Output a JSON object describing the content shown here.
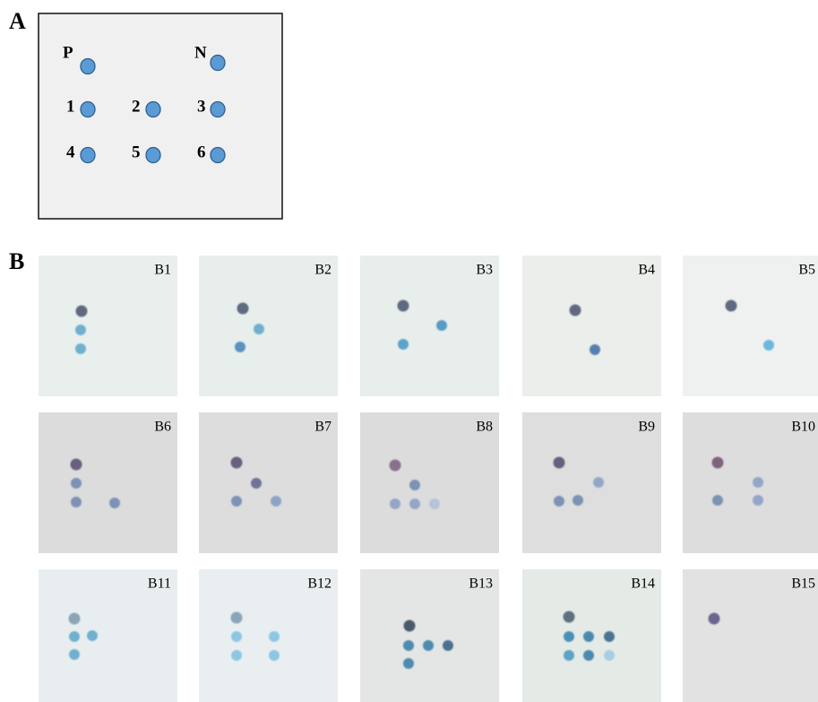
{
  "panel_a": {
    "label": "A",
    "positive": "P",
    "negative": "N",
    "samples": [
      "1",
      "2",
      "3",
      "4",
      "5",
      "6"
    ]
  },
  "panel_b": {
    "label": "B",
    "blots": [
      "B1",
      "B2",
      "B3",
      "B4",
      "B5",
      "B6",
      "B7",
      "B8",
      "B9",
      "B10",
      "B11",
      "B12",
      "B13",
      "B14",
      "B15"
    ]
  }
}
